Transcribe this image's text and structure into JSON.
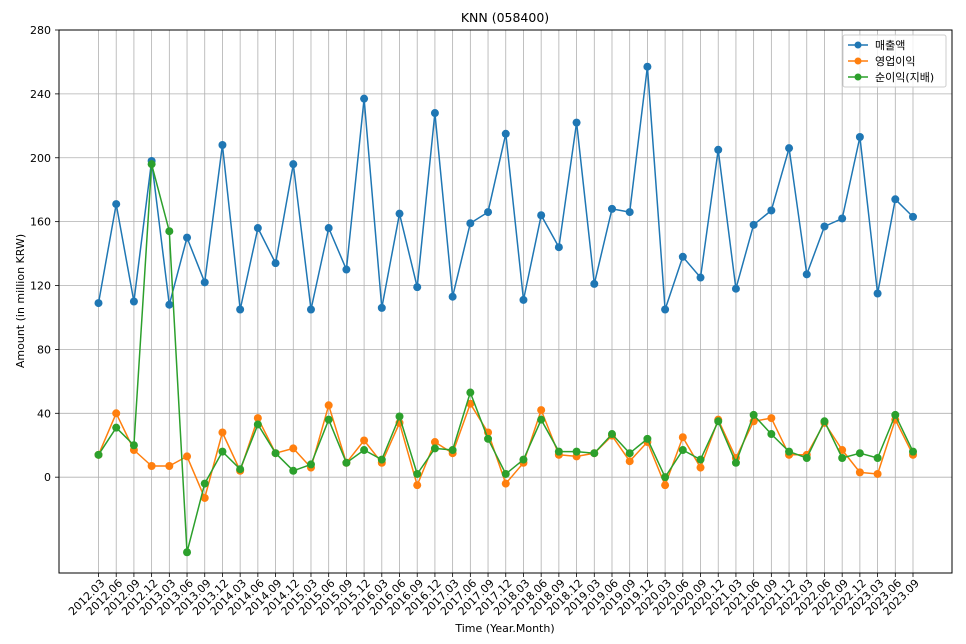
{
  "chart_data": {
    "type": "line",
    "title": "KNN (058400)",
    "xlabel": "Time (Year.Month)",
    "ylabel": "Amount (in million KRW)",
    "ylim": [
      -60,
      280
    ],
    "yticks": [
      0,
      40,
      80,
      120,
      160,
      200,
      240,
      280
    ],
    "grid": true,
    "legend_position": "top-right",
    "categories": [
      "2012.03",
      "2012.06",
      "2012.09",
      "2012.12",
      "2013.03",
      "2013.06",
      "2013.09",
      "2013.12",
      "2014.03",
      "2014.06",
      "2014.09",
      "2014.12",
      "2015.03",
      "2015.06",
      "2015.09",
      "2015.12",
      "2016.03",
      "2016.06",
      "2016.09",
      "2016.12",
      "2017.03",
      "2017.06",
      "2017.09",
      "2017.12",
      "2018.03",
      "2018.06",
      "2018.09",
      "2018.12",
      "2019.03",
      "2019.06",
      "2019.09",
      "2019.12",
      "2020.03",
      "2020.06",
      "2020.09",
      "2020.12",
      "2021.03",
      "2021.06",
      "2021.09",
      "2021.12",
      "2022.03",
      "2022.06",
      "2022.09",
      "2022.12",
      "2023.03",
      "2023.06",
      "2023.09"
    ],
    "series": [
      {
        "name": "매출액",
        "color": "#1f77b4",
        "values": [
          109,
          171,
          110,
          198,
          108,
          150,
          122,
          208,
          105,
          156,
          134,
          196,
          105,
          156,
          130,
          237,
          106,
          165,
          119,
          228,
          113,
          159,
          166,
          215,
          111,
          164,
          144,
          222,
          121,
          168,
          166,
          257,
          105,
          138,
          125,
          205,
          118,
          158,
          167,
          206,
          127,
          157,
          162,
          213,
          115,
          174,
          163
        ]
      },
      {
        "name": "영업이익",
        "color": "#ff7f0e",
        "values": [
          14,
          40,
          17,
          7,
          7,
          13,
          -13,
          28,
          4,
          37,
          15,
          18,
          6,
          45,
          9,
          23,
          9,
          34,
          -5,
          22,
          15,
          46,
          28,
          -4,
          9,
          42,
          14,
          13,
          15,
          26,
          10,
          22,
          -5,
          25,
          6,
          36,
          12,
          35,
          37,
          14,
          14,
          34,
          17,
          3,
          2,
          36,
          14
        ]
      },
      {
        "name": "순이익(지배)",
        "color": "#2ca02c",
        "values": [
          14,
          31,
          20,
          196,
          154,
          -47,
          -4,
          16,
          5,
          33,
          15,
          4,
          8,
          36,
          9,
          17,
          11,
          38,
          2,
          18,
          17,
          53,
          24,
          2,
          11,
          36,
          16,
          16,
          15,
          27,
          15,
          24,
          0,
          17,
          11,
          35,
          9,
          39,
          27,
          16,
          12,
          35,
          12,
          15,
          12,
          39,
          16
        ]
      }
    ]
  }
}
